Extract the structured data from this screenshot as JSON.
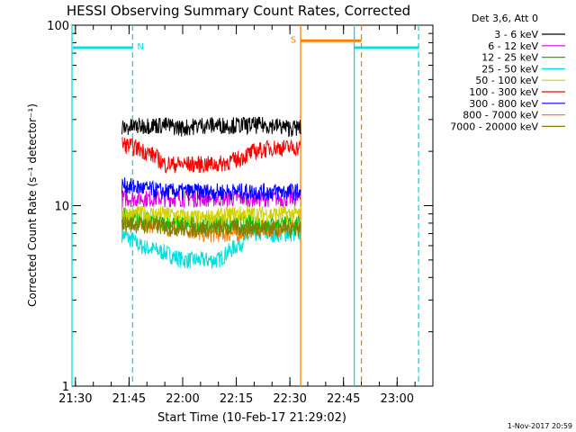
{
  "chart_data": {
    "type": "line",
    "title": "HESSI Observing Summary Count Rates, Corrected",
    "xlabel": "Start Time (10-Feb-17 21:29:02)",
    "ylabel": "Corrected Count Rate (s⁻¹ detector⁻¹)",
    "y_scale": "log",
    "ylim": [
      1,
      100
    ],
    "xlim": [
      "21:29:02",
      "23:10:00"
    ],
    "x_ticks": [
      "21:30",
      "21:45",
      "22:00",
      "22:15",
      "22:30",
      "22:45",
      "23:00"
    ],
    "y_ticks": [
      "1",
      "10",
      "100"
    ],
    "legend_header": "Det 3,6, Att 0",
    "legend_placement": "outside-right",
    "series": [
      {
        "name": "3 - 6 keV",
        "color": "#000000",
        "x": [
          "21:43",
          "21:50",
          "21:55",
          "22:00",
          "22:05",
          "22:10",
          "22:15",
          "22:20",
          "22:25",
          "22:30",
          "22:33"
        ],
        "values": [
          27,
          28,
          28,
          27,
          28,
          28,
          28,
          28,
          28,
          27,
          27
        ]
      },
      {
        "name": "6 - 12 keV",
        "color": "#e000e0",
        "x": [
          "21:43",
          "21:55",
          "22:05",
          "22:15",
          "22:25",
          "22:33"
        ],
        "values": [
          11,
          11,
          11,
          11,
          11,
          11
        ]
      },
      {
        "name": "12 - 25 keV",
        "color": "#00c000",
        "x": [
          "21:43",
          "21:55",
          "22:05",
          "22:15",
          "22:25",
          "22:33"
        ],
        "values": [
          9,
          8,
          8,
          8,
          8,
          8
        ]
      },
      {
        "name": "25 - 50 keV",
        "color": "#00e0e0",
        "x": [
          "21:43",
          "21:48",
          "21:55",
          "22:00",
          "22:05",
          "22:10",
          "22:15",
          "22:20",
          "22:25",
          "22:33"
        ],
        "values": [
          7,
          6,
          5.5,
          5,
          5,
          5,
          6,
          7,
          7,
          7
        ]
      },
      {
        "name": "50 - 100 keV",
        "color": "#d0d000",
        "x": [
          "21:43",
          "21:55",
          "22:05",
          "22:15",
          "22:25",
          "22:33"
        ],
        "values": [
          9,
          9,
          8.5,
          9,
          9,
          9
        ]
      },
      {
        "name": "100 - 300 keV",
        "color": "#ff0000",
        "x": [
          "21:43",
          "21:47",
          "21:52",
          "21:55",
          "22:00",
          "22:05",
          "22:10",
          "22:15",
          "22:20",
          "22:25",
          "22:30",
          "22:33"
        ],
        "values": [
          22,
          21,
          19,
          17,
          17,
          17,
          17,
          18,
          20,
          21,
          21,
          21
        ]
      },
      {
        "name": "300 - 800 keV",
        "color": "#0000ff",
        "x": [
          "21:43",
          "21:55",
          "22:05",
          "22:15",
          "22:25",
          "22:33"
        ],
        "values": [
          13,
          12,
          12,
          12,
          12,
          12
        ]
      },
      {
        "name": "800 - 7000 keV",
        "color": "#ff8000",
        "x": [
          "21:43",
          "21:50",
          "21:55",
          "22:00",
          "22:05",
          "22:10",
          "22:15",
          "22:20",
          "22:25",
          "22:33"
        ],
        "values": [
          9,
          8,
          7.5,
          7.5,
          7,
          7,
          7,
          7.5,
          7.5,
          7.5
        ]
      },
      {
        "name": "7000 - 20000 keV",
        "color": "#808000",
        "x": [
          "21:43",
          "22:00",
          "22:15",
          "22:33"
        ],
        "values": [
          8,
          7.5,
          7.5,
          7.5
        ]
      }
    ],
    "annotations": [
      {
        "label": "N",
        "color": "#00e0e0",
        "x_start": "21:29:02",
        "x_end": "21:46",
        "y": 75,
        "solid_vline": "21:29:02",
        "dashed_vline": "21:46"
      },
      {
        "label": "S",
        "color": "#ff8000",
        "x_start": "22:33",
        "x_end": "22:50",
        "y": 82,
        "solid_vline": "22:33",
        "dashed_vline": "22:50"
      },
      {
        "label": "",
        "color": "#00e0e0",
        "x_start": "22:48",
        "x_end": "23:06",
        "y": 75,
        "solid_vline": "22:48",
        "dashed_vline": "23:06"
      }
    ]
  },
  "footer": {
    "date": "1-Nov-2017 20:59"
  }
}
